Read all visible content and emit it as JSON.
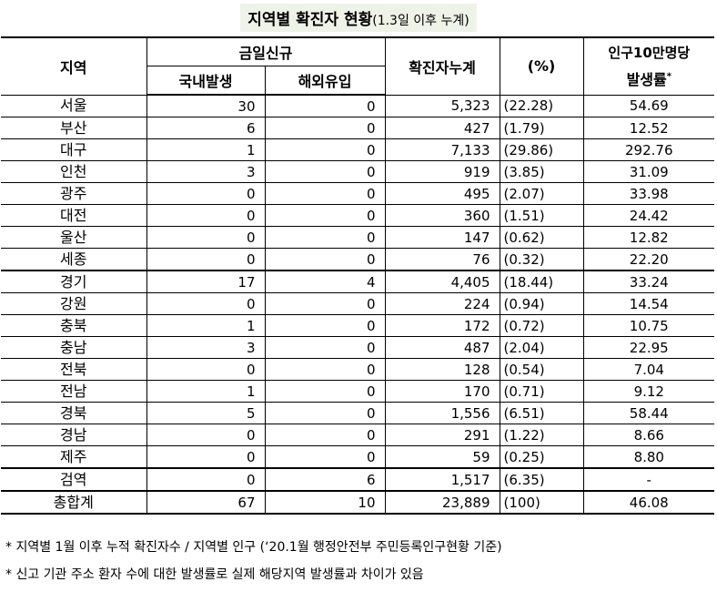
{
  "title": {
    "main": "지역별 확진자 현황",
    "sub": "(1.3일 이후 누계)"
  },
  "header": {
    "region": "지역",
    "today_new": "금일신규",
    "domestic": "국내발생",
    "overseas": "해외유입",
    "cumulative": "확진자누계",
    "percent": "(%)",
    "rate_line1": "인구10만명당",
    "rate_line2": "발생률",
    "rate_mark": "*"
  },
  "rows": [
    {
      "region": "서울",
      "domestic": "30",
      "overseas": "0",
      "cumulative": "5,323",
      "percent": "(22.28)",
      "rate": "54.69"
    },
    {
      "region": "부산",
      "domestic": "6",
      "overseas": "0",
      "cumulative": "427",
      "percent": "(1.79)",
      "rate": "12.52"
    },
    {
      "region": "대구",
      "domestic": "1",
      "overseas": "0",
      "cumulative": "7,133",
      "percent": "(29.86)",
      "rate": "292.76"
    },
    {
      "region": "인천",
      "domestic": "3",
      "overseas": "0",
      "cumulative": "919",
      "percent": "(3.85)",
      "rate": "31.09"
    },
    {
      "region": "광주",
      "domestic": "0",
      "overseas": "0",
      "cumulative": "495",
      "percent": "(2.07)",
      "rate": "33.98"
    },
    {
      "region": "대전",
      "domestic": "0",
      "overseas": "0",
      "cumulative": "360",
      "percent": "(1.51)",
      "rate": "24.42"
    },
    {
      "region": "울산",
      "domestic": "0",
      "overseas": "0",
      "cumulative": "147",
      "percent": "(0.62)",
      "rate": "12.82"
    },
    {
      "region": "세종",
      "domestic": "0",
      "overseas": "0",
      "cumulative": "76",
      "percent": "(0.32)",
      "rate": "22.20"
    },
    {
      "region": "경기",
      "domestic": "17",
      "overseas": "4",
      "cumulative": "4,405",
      "percent": "(18.44)",
      "rate": "33.24"
    },
    {
      "region": "강원",
      "domestic": "0",
      "overseas": "0",
      "cumulative": "224",
      "percent": "(0.94)",
      "rate": "14.54"
    },
    {
      "region": "충북",
      "domestic": "1",
      "overseas": "0",
      "cumulative": "172",
      "percent": "(0.72)",
      "rate": "10.75"
    },
    {
      "region": "충남",
      "domestic": "3",
      "overseas": "0",
      "cumulative": "487",
      "percent": "(2.04)",
      "rate": "22.95"
    },
    {
      "region": "전북",
      "domestic": "0",
      "overseas": "0",
      "cumulative": "128",
      "percent": "(0.54)",
      "rate": "7.04"
    },
    {
      "region": "전남",
      "domestic": "1",
      "overseas": "0",
      "cumulative": "170",
      "percent": "(0.71)",
      "rate": "9.12"
    },
    {
      "region": "경북",
      "domestic": "5",
      "overseas": "0",
      "cumulative": "1,556",
      "percent": "(6.51)",
      "rate": "58.44"
    },
    {
      "region": "경남",
      "domestic": "0",
      "overseas": "0",
      "cumulative": "291",
      "percent": "(1.22)",
      "rate": "8.66"
    },
    {
      "region": "제주",
      "domestic": "0",
      "overseas": "0",
      "cumulative": "59",
      "percent": "(0.25)",
      "rate": "8.80"
    },
    {
      "region": "검역",
      "domestic": "0",
      "overseas": "6",
      "cumulative": "1,517",
      "percent": "(6.35)",
      "rate": "-"
    },
    {
      "region": "총합계",
      "domestic": "67",
      "overseas": "10",
      "cumulative": "23,889",
      "percent": "(100)",
      "rate": "46.08"
    }
  ],
  "notes": [
    "* 지역별 1월 이후 누적 확진자수 / 지역별 인구 (‘20.1월 행정안전부 주민등록인구현황 기준)",
    "* 신고 기관 주소 환자 수에 대한 발생률로 실제 해당지역 발생률과 차이가 있음"
  ]
}
